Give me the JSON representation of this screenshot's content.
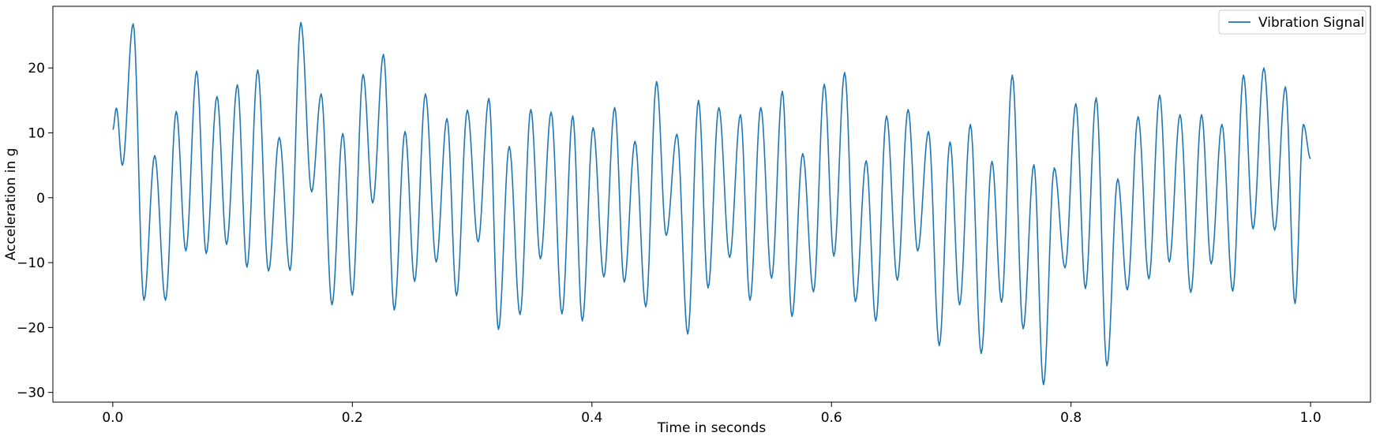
{
  "chart_data": {
    "type": "line",
    "xlabel": "Time in seconds",
    "ylabel": "Acceleration in g",
    "xlim": [
      -0.05,
      1.05
    ],
    "ylim": [
      -31.5,
      29.5
    ],
    "xticks": [
      0.0,
      0.2,
      0.4,
      0.6,
      0.8,
      1.0
    ],
    "xtick_labels": [
      "0.0",
      "0.2",
      "0.4",
      "0.6",
      "0.8",
      "1.0"
    ],
    "yticks": [
      -30,
      -20,
      -10,
      0,
      10,
      20
    ],
    "ytick_labels": [
      "−30",
      "−20",
      "−10",
      "0",
      "10",
      "20"
    ],
    "grid": false,
    "legend_position": "top-right",
    "series": [
      {
        "name": "Vibration Signal",
        "color": "#1f77b4",
        "x": [
          0.0,
          0.003,
          0.008,
          0.017,
          0.026,
          0.035,
          0.044,
          0.053,
          0.061,
          0.07,
          0.078,
          0.087,
          0.095,
          0.104,
          0.112,
          0.121,
          0.13,
          0.139,
          0.148,
          0.157,
          0.166,
          0.174,
          0.183,
          0.192,
          0.2,
          0.209,
          0.217,
          0.226,
          0.235,
          0.244,
          0.252,
          0.261,
          0.27,
          0.279,
          0.287,
          0.296,
          0.305,
          0.314,
          0.322,
          0.331,
          0.34,
          0.349,
          0.357,
          0.366,
          0.375,
          0.384,
          0.392,
          0.401,
          0.41,
          0.419,
          0.427,
          0.436,
          0.445,
          0.454,
          0.462,
          0.471,
          0.48,
          0.489,
          0.497,
          0.506,
          0.515,
          0.524,
          0.532,
          0.541,
          0.55,
          0.559,
          0.567,
          0.576,
          0.585,
          0.594,
          0.602,
          0.611,
          0.62,
          0.629,
          0.637,
          0.646,
          0.655,
          0.664,
          0.672,
          0.681,
          0.69,
          0.699,
          0.707,
          0.716,
          0.725,
          0.734,
          0.742,
          0.751,
          0.76,
          0.769,
          0.777,
          0.786,
          0.795,
          0.804,
          0.812,
          0.821,
          0.83,
          0.839,
          0.847,
          0.856,
          0.865,
          0.874,
          0.882,
          0.891,
          0.9,
          0.909,
          0.917,
          0.926,
          0.935,
          0.944,
          0.952,
          0.961,
          0.97,
          0.979,
          0.987,
          0.994,
          1.0
        ],
        "values": [
          10.5,
          13.8,
          5.0,
          26.8,
          -15.8,
          6.5,
          -15.8,
          13.3,
          -8.2,
          19.5,
          -8.6,
          15.6,
          -7.2,
          17.4,
          -10.7,
          19.7,
          -11.3,
          9.3,
          -11.2,
          27.0,
          0.9,
          16.0,
          -16.5,
          9.9,
          -15.0,
          19.0,
          -0.8,
          22.1,
          -17.3,
          10.2,
          -12.9,
          16.0,
          -9.9,
          12.2,
          -15.1,
          13.5,
          -6.8,
          15.3,
          -20.3,
          7.9,
          -18.0,
          13.6,
          -9.4,
          13.2,
          -17.9,
          12.6,
          -19.0,
          10.8,
          -12.2,
          13.9,
          -13.0,
          8.7,
          -16.8,
          17.9,
          -5.8,
          9.8,
          -21.0,
          15.0,
          -13.9,
          13.9,
          -9.2,
          12.8,
          -15.8,
          13.9,
          -12.4,
          16.4,
          -18.3,
          6.8,
          -14.5,
          17.5,
          -9.0,
          19.3,
          -16.0,
          5.7,
          -19.0,
          12.6,
          -12.7,
          13.6,
          -8.2,
          10.2,
          -22.8,
          8.6,
          -16.5,
          11.3,
          -24.0,
          5.6,
          -16.1,
          18.9,
          -20.2,
          5.1,
          -28.8,
          4.6,
          -10.8,
          14.5,
          -14.0,
          15.4,
          -25.9,
          2.9,
          -14.2,
          12.5,
          -12.5,
          15.8,
          -9.9,
          12.8,
          -14.6,
          12.8,
          -10.2,
          11.3,
          -14.4,
          18.9,
          -4.8,
          20.0,
          -5.0,
          17.1,
          -16.3,
          11.3,
          6.0
        ]
      }
    ]
  }
}
